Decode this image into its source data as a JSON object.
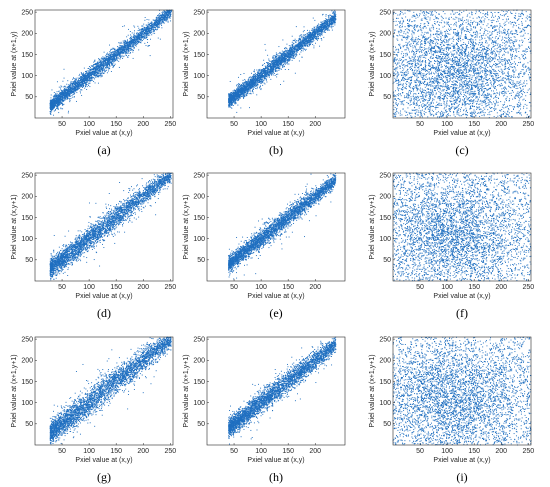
{
  "colors": {
    "marker": "#1f6fc0",
    "axis": "#262626"
  },
  "chart_data": [
    {
      "type": "scatter",
      "caption": "(a)",
      "xlabel": "Pxiel value at (x,y)",
      "ylabel": "Pxiel value at (x+1,y)",
      "xlim": [
        0,
        255
      ],
      "ylim": [
        0,
        255
      ],
      "xticks": [
        50,
        100,
        150,
        200,
        250
      ],
      "yticks": [
        50,
        100,
        150,
        200,
        250
      ],
      "distribution": "correlated",
      "x_range": [
        28,
        252
      ],
      "slope": 1.0,
      "offset": 0,
      "spread": 7,
      "points": 3600
    },
    {
      "type": "scatter",
      "caption": "(b)",
      "xlabel": "Pxiel value at (x,y)",
      "ylabel": "Pxiel value at (x+1,y)",
      "xlim": [
        0,
        255
      ],
      "ylim": [
        0,
        255
      ],
      "xticks": [
        50,
        100,
        150,
        200
      ],
      "yticks": [
        50,
        100,
        150,
        200,
        250
      ],
      "distribution": "correlated",
      "x_range": [
        40,
        238
      ],
      "slope": 1.0,
      "offset": 0,
      "spread": 7,
      "points": 3600
    },
    {
      "type": "scatter",
      "caption": "(c)",
      "xlabel": "Pxiel value at (x,y)",
      "ylabel": "Pxiel value at (x+1,y)",
      "xlim": [
        0,
        255
      ],
      "ylim": [
        0,
        255
      ],
      "xticks": [
        50,
        100,
        150,
        200,
        250
      ],
      "yticks": [
        50,
        100,
        150,
        200,
        250
      ],
      "distribution": "uniform",
      "center": [
        110,
        110
      ],
      "spread": 65,
      "points": 4500
    },
    {
      "type": "scatter",
      "caption": "(d)",
      "xlabel": "Pxiel value at (x,y)",
      "ylabel": "Pxiel value at (x,y+1)",
      "xlim": [
        0,
        255
      ],
      "ylim": [
        0,
        255
      ],
      "xticks": [
        50,
        100,
        150,
        200,
        250
      ],
      "yticks": [
        50,
        100,
        150,
        200,
        250
      ],
      "distribution": "correlated",
      "x_range": [
        28,
        252
      ],
      "slope": 1.0,
      "offset": 0,
      "spread": 10,
      "points": 3600
    },
    {
      "type": "scatter",
      "caption": "(e)",
      "xlabel": "Pxiel value at (x,y)",
      "ylabel": "Pxiel value at (x,y+1)",
      "xlim": [
        0,
        255
      ],
      "ylim": [
        0,
        255
      ],
      "xticks": [
        50,
        100,
        150,
        200
      ],
      "yticks": [
        50,
        100,
        150,
        200,
        250
      ],
      "distribution": "correlated",
      "x_range": [
        40,
        238
      ],
      "slope": 1.0,
      "offset": 0,
      "spread": 8,
      "points": 3600
    },
    {
      "type": "scatter",
      "caption": "(f)",
      "xlabel": "Pxiel value at (x,y)",
      "ylabel": "Pxiel value at (x,y+1)",
      "xlim": [
        0,
        255
      ],
      "ylim": [
        0,
        255
      ],
      "xticks": [
        50,
        100,
        150,
        200,
        250
      ],
      "yticks": [
        50,
        100,
        150,
        200,
        250
      ],
      "distribution": "uniform",
      "center": [
        110,
        110
      ],
      "spread": 65,
      "points": 4500
    },
    {
      "type": "scatter",
      "caption": "(g)",
      "xlabel": "Pxiel value at (x,y)",
      "ylabel": "Pxiel value at (x+1,y+1)",
      "xlim": [
        0,
        255
      ],
      "ylim": [
        0,
        255
      ],
      "xticks": [
        50,
        100,
        150,
        200,
        250
      ],
      "yticks": [
        50,
        100,
        150,
        200,
        250
      ],
      "distribution": "correlated",
      "x_range": [
        28,
        252
      ],
      "slope": 1.0,
      "offset": 0,
      "spread": 12,
      "points": 3600
    },
    {
      "type": "scatter",
      "caption": "(h)",
      "xlabel": "Pxiel value at (x,y)",
      "ylabel": "Pxiel value at (x+1,y+1)",
      "xlim": [
        0,
        255
      ],
      "ylim": [
        0,
        255
      ],
      "xticks": [
        50,
        100,
        150,
        200
      ],
      "yticks": [
        50,
        100,
        150,
        200,
        250
      ],
      "distribution": "correlated",
      "x_range": [
        40,
        238
      ],
      "slope": 1.0,
      "offset": 0,
      "spread": 10,
      "points": 3600
    },
    {
      "type": "scatter",
      "caption": "(i)",
      "xlabel": "Pxiel value at (x,y)",
      "ylabel": "Pxiel value at (x+1,y+1)",
      "xlim": [
        0,
        255
      ],
      "ylim": [
        0,
        255
      ],
      "xticks": [
        50,
        100,
        150,
        200,
        250
      ],
      "yticks": [
        50,
        100,
        150,
        200,
        250
      ],
      "distribution": "uniform",
      "center": [
        110,
        110
      ],
      "spread": 65,
      "points": 4500
    }
  ]
}
